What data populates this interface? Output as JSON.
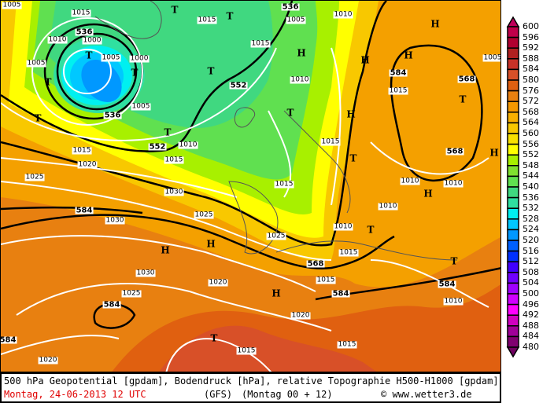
{
  "caption": {
    "line1": "500 hPa Geopotential [gpdam], Bodendruck [hPa], relative Topographie H500-H1000 [gpdam]",
    "date": "Montag, 24-06-2013  12 UTC",
    "model": "(GFS)",
    "run": "(Montag 00 + 12)",
    "copyright_symbol": "©",
    "site": "www.wetter3.de"
  },
  "legend": {
    "labels": [
      "600",
      "596",
      "592",
      "588",
      "584",
      "580",
      "576",
      "572",
      "568",
      "564",
      "560",
      "556",
      "552",
      "548",
      "544",
      "540",
      "536",
      "532",
      "528",
      "524",
      "520",
      "516",
      "512",
      "508",
      "504",
      "500",
      "496",
      "492",
      "488",
      "484",
      "480"
    ],
    "colors": [
      "#c0004a",
      "#b00030",
      "#b02020",
      "#c83228",
      "#d85028",
      "#e06010",
      "#e88010",
      "#f49800",
      "#f8b000",
      "#f8c800",
      "#f8e000",
      "#ffff00",
      "#a8f000",
      "#80e030",
      "#60e050",
      "#40d880",
      "#30e0a0",
      "#00f0f0",
      "#00c8ff",
      "#0098ff",
      "#0060ff",
      "#0030ff",
      "#4000ff",
      "#7000ff",
      "#a000ff",
      "#d000ff",
      "#ff00ff",
      "#d000c0",
      "#a00098",
      "#800070"
    ],
    "top_arrow_color": "#c0005a",
    "bottom_arrow_color": "#700060"
  },
  "map": {
    "labels": [
      {
        "t": "1005",
        "k": "p"
      },
      {
        "t": "1015",
        "k": "p"
      },
      {
        "t": "1015",
        "k": "p"
      },
      {
        "t": "1010",
        "k": "p"
      },
      {
        "t": "1005",
        "k": "p"
      },
      {
        "t": "1010",
        "k": "p"
      },
      {
        "t": "1005",
        "k": "p"
      },
      {
        "t": "1000",
        "k": "p"
      },
      {
        "t": "1005",
        "k": "p"
      },
      {
        "t": "1000",
        "k": "p"
      },
      {
        "t": "1015",
        "k": "p"
      },
      {
        "t": "1020",
        "k": "p"
      },
      {
        "t": "1025",
        "k": "p"
      },
      {
        "t": "1030",
        "k": "p"
      },
      {
        "t": "1030",
        "k": "p"
      },
      {
        "t": "1025",
        "k": "p"
      },
      {
        "t": "1030",
        "k": "p"
      },
      {
        "t": "1020",
        "k": "p"
      },
      {
        "t": "1025",
        "k": "p"
      },
      {
        "t": "1020",
        "k": "p"
      },
      {
        "t": "1020",
        "k": "p"
      },
      {
        "t": "1015",
        "k": "p"
      },
      {
        "t": "1015",
        "k": "p"
      },
      {
        "t": "1015",
        "k": "p"
      },
      {
        "t": "1010",
        "k": "p"
      },
      {
        "t": "1015",
        "k": "p"
      },
      {
        "t": "1010",
        "k": "p"
      },
      {
        "t": "1015",
        "k": "p"
      },
      {
        "t": "1015",
        "k": "p"
      },
      {
        "t": "1010",
        "k": "p"
      },
      {
        "t": "1015",
        "k": "p"
      },
      {
        "t": "1005",
        "k": "p"
      },
      {
        "t": "1005",
        "k": "p"
      },
      {
        "t": "1010",
        "k": "p"
      },
      {
        "t": "1010",
        "k": "p"
      },
      {
        "t": "1015",
        "k": "p"
      },
      {
        "t": "1025",
        "k": "p"
      },
      {
        "t": "1010",
        "k": "p"
      },
      {
        "t": "1015",
        "k": "p"
      },
      {
        "t": "1010",
        "k": "p"
      },
      {
        "t": "536",
        "k": "g"
      },
      {
        "t": "536",
        "k": "g"
      },
      {
        "t": "536",
        "k": "g"
      },
      {
        "t": "552",
        "k": "g"
      },
      {
        "t": "552",
        "k": "g"
      },
      {
        "t": "584",
        "k": "g"
      },
      {
        "t": "584",
        "k": "g"
      },
      {
        "t": "584",
        "k": "g"
      },
      {
        "t": "584",
        "k": "g"
      },
      {
        "t": "568",
        "k": "g"
      },
      {
        "t": "568",
        "k": "g"
      },
      {
        "t": "568",
        "k": "g"
      },
      {
        "t": "584",
        "k": "g"
      },
      {
        "t": "584",
        "k": "g"
      },
      {
        "t": "T",
        "k": "hl"
      },
      {
        "t": "T",
        "k": "hl"
      },
      {
        "t": "T",
        "k": "hl"
      },
      {
        "t": "T",
        "k": "hl"
      },
      {
        "t": "T",
        "k": "hl"
      },
      {
        "t": "T",
        "k": "hl"
      },
      {
        "t": "T",
        "k": "hl"
      },
      {
        "t": "T",
        "k": "hl"
      },
      {
        "t": "T",
        "k": "hl"
      },
      {
        "t": "T",
        "k": "hl"
      },
      {
        "t": "T",
        "k": "hl"
      },
      {
        "t": "T",
        "k": "hl"
      },
      {
        "t": "T",
        "k": "hl"
      },
      {
        "t": "T",
        "k": "hl"
      },
      {
        "t": "H",
        "k": "hl"
      },
      {
        "t": "H",
        "k": "hl"
      },
      {
        "t": "H",
        "k": "hl"
      },
      {
        "t": "H",
        "k": "hl"
      },
      {
        "t": "H",
        "k": "hl"
      },
      {
        "t": "H",
        "k": "hl"
      },
      {
        "t": "H",
        "k": "hl"
      },
      {
        "t": "H",
        "k": "hl"
      },
      {
        "t": "H",
        "k": "hl"
      },
      {
        "t": "H",
        "k": "hl"
      }
    ]
  }
}
